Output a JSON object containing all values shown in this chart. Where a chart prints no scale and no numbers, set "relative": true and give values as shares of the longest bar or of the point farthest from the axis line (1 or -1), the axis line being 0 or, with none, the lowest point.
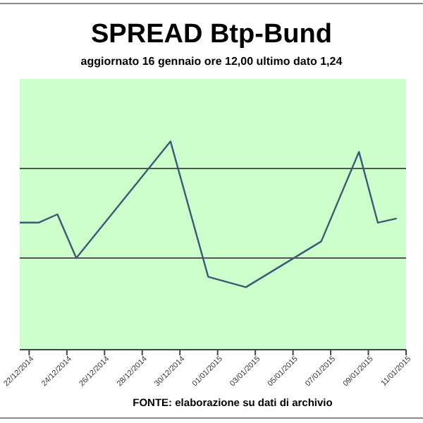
{
  "chart_data": {
    "type": "line",
    "title": "SPREAD Btp-Bund",
    "subtitle": "aggiornato 16 gennaio ore 12,00  ultimo dato  1,24",
    "annotations": [
      "FONTE: elaborazione su dati di archivio"
    ],
    "relative": true,
    "ref_lines": [
      {
        "axis": "y",
        "value": 0.87,
        "color": "#555555"
      },
      {
        "axis": "y",
        "value": 0.44,
        "color": "#555555"
      }
    ],
    "marker": "none",
    "xlim": [
      "2014-12-21T12:00",
      "2015-01-11T00:00"
    ],
    "xticks": [
      {
        "value": "2014-12-22",
        "label": "22/12/2014"
      },
      {
        "value": "2014-12-24",
        "label": "24/12/2014"
      },
      {
        "value": "2014-12-26",
        "label": "26/12/2014"
      },
      {
        "value": "2014-12-28",
        "label": "28/12/2014"
      },
      {
        "value": "2014-12-30",
        "label": "30/12/2014"
      },
      {
        "value": "2015-01-01",
        "label": "01/01/2015"
      },
      {
        "value": "2015-01-03",
        "label": "03/01/2015"
      },
      {
        "value": "2015-01-05",
        "label": "05/01/2015"
      },
      {
        "value": "2015-01-07",
        "label": "07/01/2015"
      },
      {
        "value": "2015-01-09",
        "label": "09/01/2015"
      },
      {
        "value": "2015-01-11",
        "label": "11/01/2015"
      }
    ],
    "x": [
      "2014-12-21T12:00",
      "2014-12-22T12:00",
      "2014-12-23T12:00",
      "2014-12-24T12:00",
      "2014-12-29T12:00",
      "2014-12-31T12:00",
      "2015-01-02T12:00",
      "2015-01-06T12:00",
      "2015-01-08T12:00",
      "2015-01-09T12:00",
      "2015-01-10T12:00"
    ],
    "series": [
      {
        "color": "#3d5a73",
        "values": [
          0.61,
          0.61,
          0.65,
          0.44,
          1,
          0.35,
          0.3,
          0.52,
          0.95,
          0.61,
          0.63
        ]
      }
    ]
  }
}
